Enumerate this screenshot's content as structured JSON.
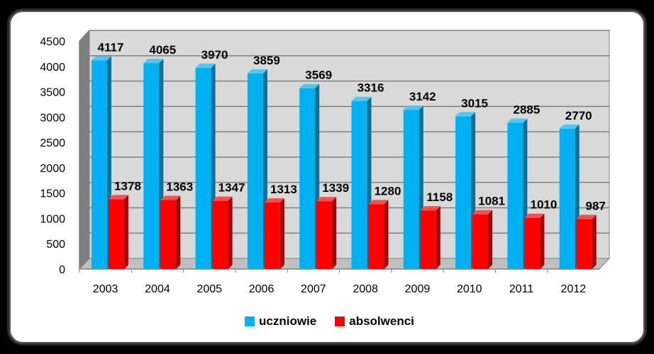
{
  "chart_data": {
    "type": "bar",
    "title": "",
    "xlabel": "",
    "ylabel": "",
    "categories": [
      "2003",
      "2004",
      "2005",
      "2006",
      "2007",
      "2008",
      "2009",
      "2010",
      "2011",
      "2012"
    ],
    "series": [
      {
        "name": "uczniowie",
        "color": "#00B0F0",
        "values": [
          4117,
          4065,
          3970,
          3859,
          3569,
          3316,
          3142,
          3015,
          2885,
          2770
        ]
      },
      {
        "name": "absolwenci",
        "color": "#FF0000",
        "values": [
          1378,
          1363,
          1347,
          1313,
          1339,
          1280,
          1158,
          1081,
          1010,
          987
        ]
      }
    ],
    "ylim": [
      0,
      4500
    ],
    "yticks": [
      0,
      500,
      1000,
      1500,
      2000,
      2500,
      3000,
      3500,
      4000,
      4500
    ],
    "grid": true,
    "legend_position": "bottom",
    "style": "3d-column"
  }
}
